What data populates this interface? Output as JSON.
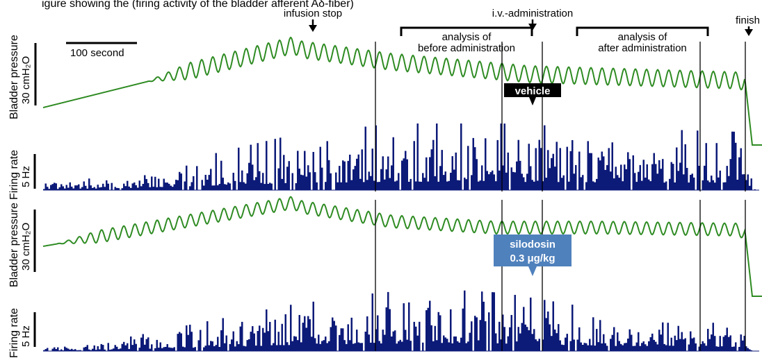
{
  "header_text": "igure showing the  (firing activity of the bladder afferent Aδ-fiber)",
  "annotations": {
    "infusion_stop": "infusion  stop",
    "iv_administration": "i.v.-administration",
    "finish": "finish",
    "analysis_before_line1": "analysis of",
    "analysis_before_line2": "before  administration",
    "analysis_after_line1": "analysis of",
    "analysis_after_line2": "after  administration",
    "time_scale": "100  second"
  },
  "axis_labels": {
    "pressure_top": "Bladder  pressure",
    "pressure_bottom": "Bladder  pressure",
    "firing_top": "Firing  rate",
    "firing_bottom": "Firing  rate",
    "pressure_scale_top": "30  cmH₂O",
    "pressure_scale_bottom": "30  cmH₂O",
    "firing_scale_top": "5  Hz",
    "firing_scale_bottom": "5  Hz"
  },
  "labels": {
    "vehicle": "vehicle",
    "silodosin_line1": "silodosin",
    "silodosin_line2": "0.3  μg/kg"
  },
  "colors": {
    "pressure_trace": "#2e8b22",
    "firing_bars": "#0c1a78",
    "vehicle_box": "#000000",
    "silodosin_box": "#4f81bd",
    "text": "#000000"
  },
  "chart_data": [
    {
      "type": "line",
      "name": "bladder-pressure-vehicle",
      "x_unit": "second",
      "y_unit": "cmH2O",
      "scale_bar": {
        "x": 100,
        "y": 30
      },
      "time_range": [
        0,
        1000
      ],
      "phase_points": [
        [
          0,
          0
        ],
        [
          360,
          30
        ],
        [
          370,
          28
        ],
        [
          500,
          22
        ],
        [
          700,
          16
        ],
        [
          1000,
          13
        ],
        [
          1010,
          12
        ],
        [
          1020,
          -18
        ],
        [
          1035,
          -18
        ]
      ],
      "oscillation_start": 150,
      "oscillation_amplitude": 4,
      "oscillation_period": 16,
      "events": {
        "infusion_stop": 360,
        "iv_administration": 660,
        "finish": 1010
      },
      "analysis_windows": {
        "before": [
          478,
          660
        ],
        "after": [
          718,
          945
        ]
      }
    },
    {
      "type": "bar",
      "name": "firing-rate-vehicle",
      "y_unit": "Hz",
      "scale_bar": {
        "y": 5
      },
      "x_range": [
        0,
        1030
      ],
      "bin_width": 2.5,
      "envelope": [
        [
          0,
          1.0
        ],
        [
          100,
          1.6
        ],
        [
          200,
          3.5
        ],
        [
          350,
          6.5
        ],
        [
          500,
          8.0
        ],
        [
          660,
          8.0
        ],
        [
          800,
          7.5
        ],
        [
          1000,
          7.0
        ],
        [
          1010,
          5.0
        ],
        [
          1020,
          0.2
        ]
      ]
    },
    {
      "type": "line",
      "name": "bladder-pressure-silodosin",
      "x_unit": "second",
      "y_unit": "cmH2O",
      "scale_bar": {
        "x": 100,
        "y": 30
      },
      "time_range": [
        0,
        1000
      ],
      "phase_points": [
        [
          0,
          5
        ],
        [
          360,
          26
        ],
        [
          370,
          24
        ],
        [
          500,
          17
        ],
        [
          650,
          14
        ],
        [
          800,
          14
        ],
        [
          1000,
          13
        ],
        [
          1010,
          11
        ],
        [
          1020,
          -19
        ],
        [
          1035,
          -19
        ]
      ],
      "oscillation_start": 20,
      "oscillation_amplitude": 3,
      "oscillation_period": 16,
      "events": {
        "iv_administration": 660,
        "finish": 1010
      },
      "analysis_windows": {
        "before": [
          478,
          660
        ],
        "after": [
          718,
          945
        ]
      }
    },
    {
      "type": "bar",
      "name": "firing-rate-silodosin",
      "y_unit": "Hz",
      "scale_bar": {
        "y": 5
      },
      "x_range": [
        0,
        1030
      ],
      "bin_width": 2.5,
      "envelope": [
        [
          0,
          0.5
        ],
        [
          80,
          1.0
        ],
        [
          200,
          3.0
        ],
        [
          350,
          5.5
        ],
        [
          480,
          7.0
        ],
        [
          560,
          7.5
        ],
        [
          660,
          7.0
        ],
        [
          800,
          5.0
        ],
        [
          1000,
          4.0
        ],
        [
          1010,
          2.0
        ],
        [
          1020,
          0.2
        ]
      ]
    }
  ]
}
